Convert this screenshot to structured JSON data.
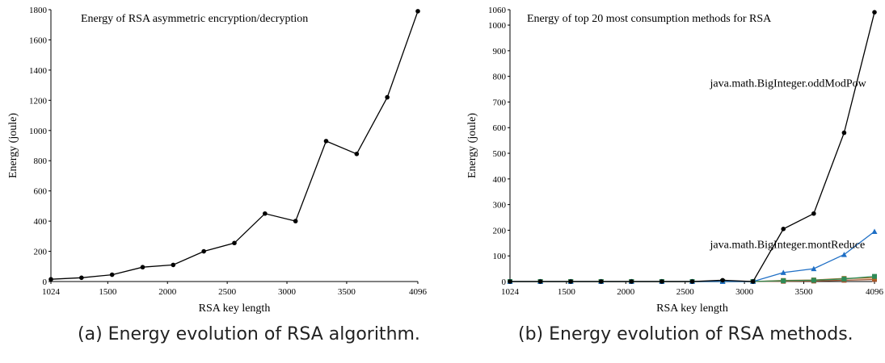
{
  "chart_data": [
    {
      "type": "line",
      "title": "Energy of RSA asymmetric encryption/decryption",
      "xlabel": "RSA key length",
      "ylabel": "Energy (joule)",
      "xlim": [
        1024,
        4096
      ],
      "ylim": [
        0,
        1800
      ],
      "x_ticks": [
        1024,
        1500,
        2000,
        2500,
        3000,
        3500,
        4096
      ],
      "y_ticks": [
        0,
        200,
        400,
        600,
        800,
        1000,
        1200,
        1400,
        1600,
        1800
      ],
      "grid": false,
      "series": [
        {
          "color": "#000000",
          "marker": "circle",
          "x": [
            1024,
            1280,
            1536,
            1792,
            2048,
            2304,
            2560,
            2816,
            3072,
            3328,
            3584,
            3840,
            4096
          ],
          "y": [
            15,
            25,
            45,
            95,
            110,
            200,
            255,
            450,
            400,
            930,
            845,
            1220,
            1790
          ]
        }
      ],
      "caption": "(a) Energy evolution of RSA algorithm."
    },
    {
      "type": "line",
      "title": "Energy of top 20 most consumption methods for RSA",
      "xlabel": "RSA key length",
      "ylabel": "Energy (joule)",
      "xlim": [
        1024,
        4096
      ],
      "ylim": [
        0,
        1060
      ],
      "x_ticks": [
        1024,
        1500,
        2000,
        2500,
        3000,
        3500,
        4096
      ],
      "y_ticks": [
        0,
        100,
        200,
        300,
        400,
        500,
        600,
        700,
        800,
        900,
        1000,
        1060
      ],
      "grid": false,
      "annotations": [
        {
          "text": "java.math.BigInteger.oddModPow",
          "x": 2560,
          "y": 760
        },
        {
          "text": "java.math.BigInteger.montReduce",
          "x": 2560,
          "y": 130
        }
      ],
      "series": [
        {
          "color": "#000000",
          "marker": "circle",
          "x": [
            1024,
            1280,
            1536,
            1792,
            2048,
            2304,
            2560,
            2816,
            3072,
            3328,
            3584,
            3840,
            4096
          ],
          "y": [
            0,
            0,
            0,
            0,
            0,
            0,
            0,
            5,
            0,
            205,
            265,
            580,
            1050
          ]
        },
        {
          "color": "#1f6fc5",
          "marker": "triangle",
          "x": [
            1024,
            1280,
            1536,
            1792,
            2048,
            2304,
            2560,
            2816,
            3072,
            3328,
            3584,
            3840,
            4096
          ],
          "y": [
            0,
            0,
            0,
            0,
            0,
            0,
            0,
            0,
            0,
            35,
            50,
            105,
            195
          ]
        },
        {
          "color": "#2e8b57",
          "marker": "square",
          "x": [
            1024,
            1280,
            1536,
            1792,
            2048,
            2304,
            2560,
            2816,
            3072,
            3328,
            3584,
            3840,
            4096
          ],
          "y": [
            0,
            0,
            0,
            0,
            0,
            0,
            0,
            0,
            0,
            3,
            5,
            10,
            20
          ]
        },
        {
          "color": "#b5651d",
          "marker": "square",
          "x": [
            1024,
            1280,
            1536,
            1792,
            2048,
            2304,
            2560,
            2816,
            3072,
            3328,
            3584,
            3840,
            4096
          ],
          "y": [
            0,
            0,
            0,
            0,
            0,
            0,
            0,
            0,
            0,
            4,
            6,
            12,
            14
          ]
        },
        {
          "color": "#a0522d",
          "marker": "square",
          "x": [
            1024,
            1280,
            1536,
            1792,
            2048,
            2304,
            2560,
            2816,
            3072,
            3328,
            3584,
            3840,
            4096
          ],
          "y": [
            0,
            0,
            0,
            0,
            0,
            0,
            0,
            0,
            0,
            1,
            2,
            5,
            8
          ]
        }
      ],
      "caption": "(b) Energy evolution of RSA methods."
    }
  ]
}
